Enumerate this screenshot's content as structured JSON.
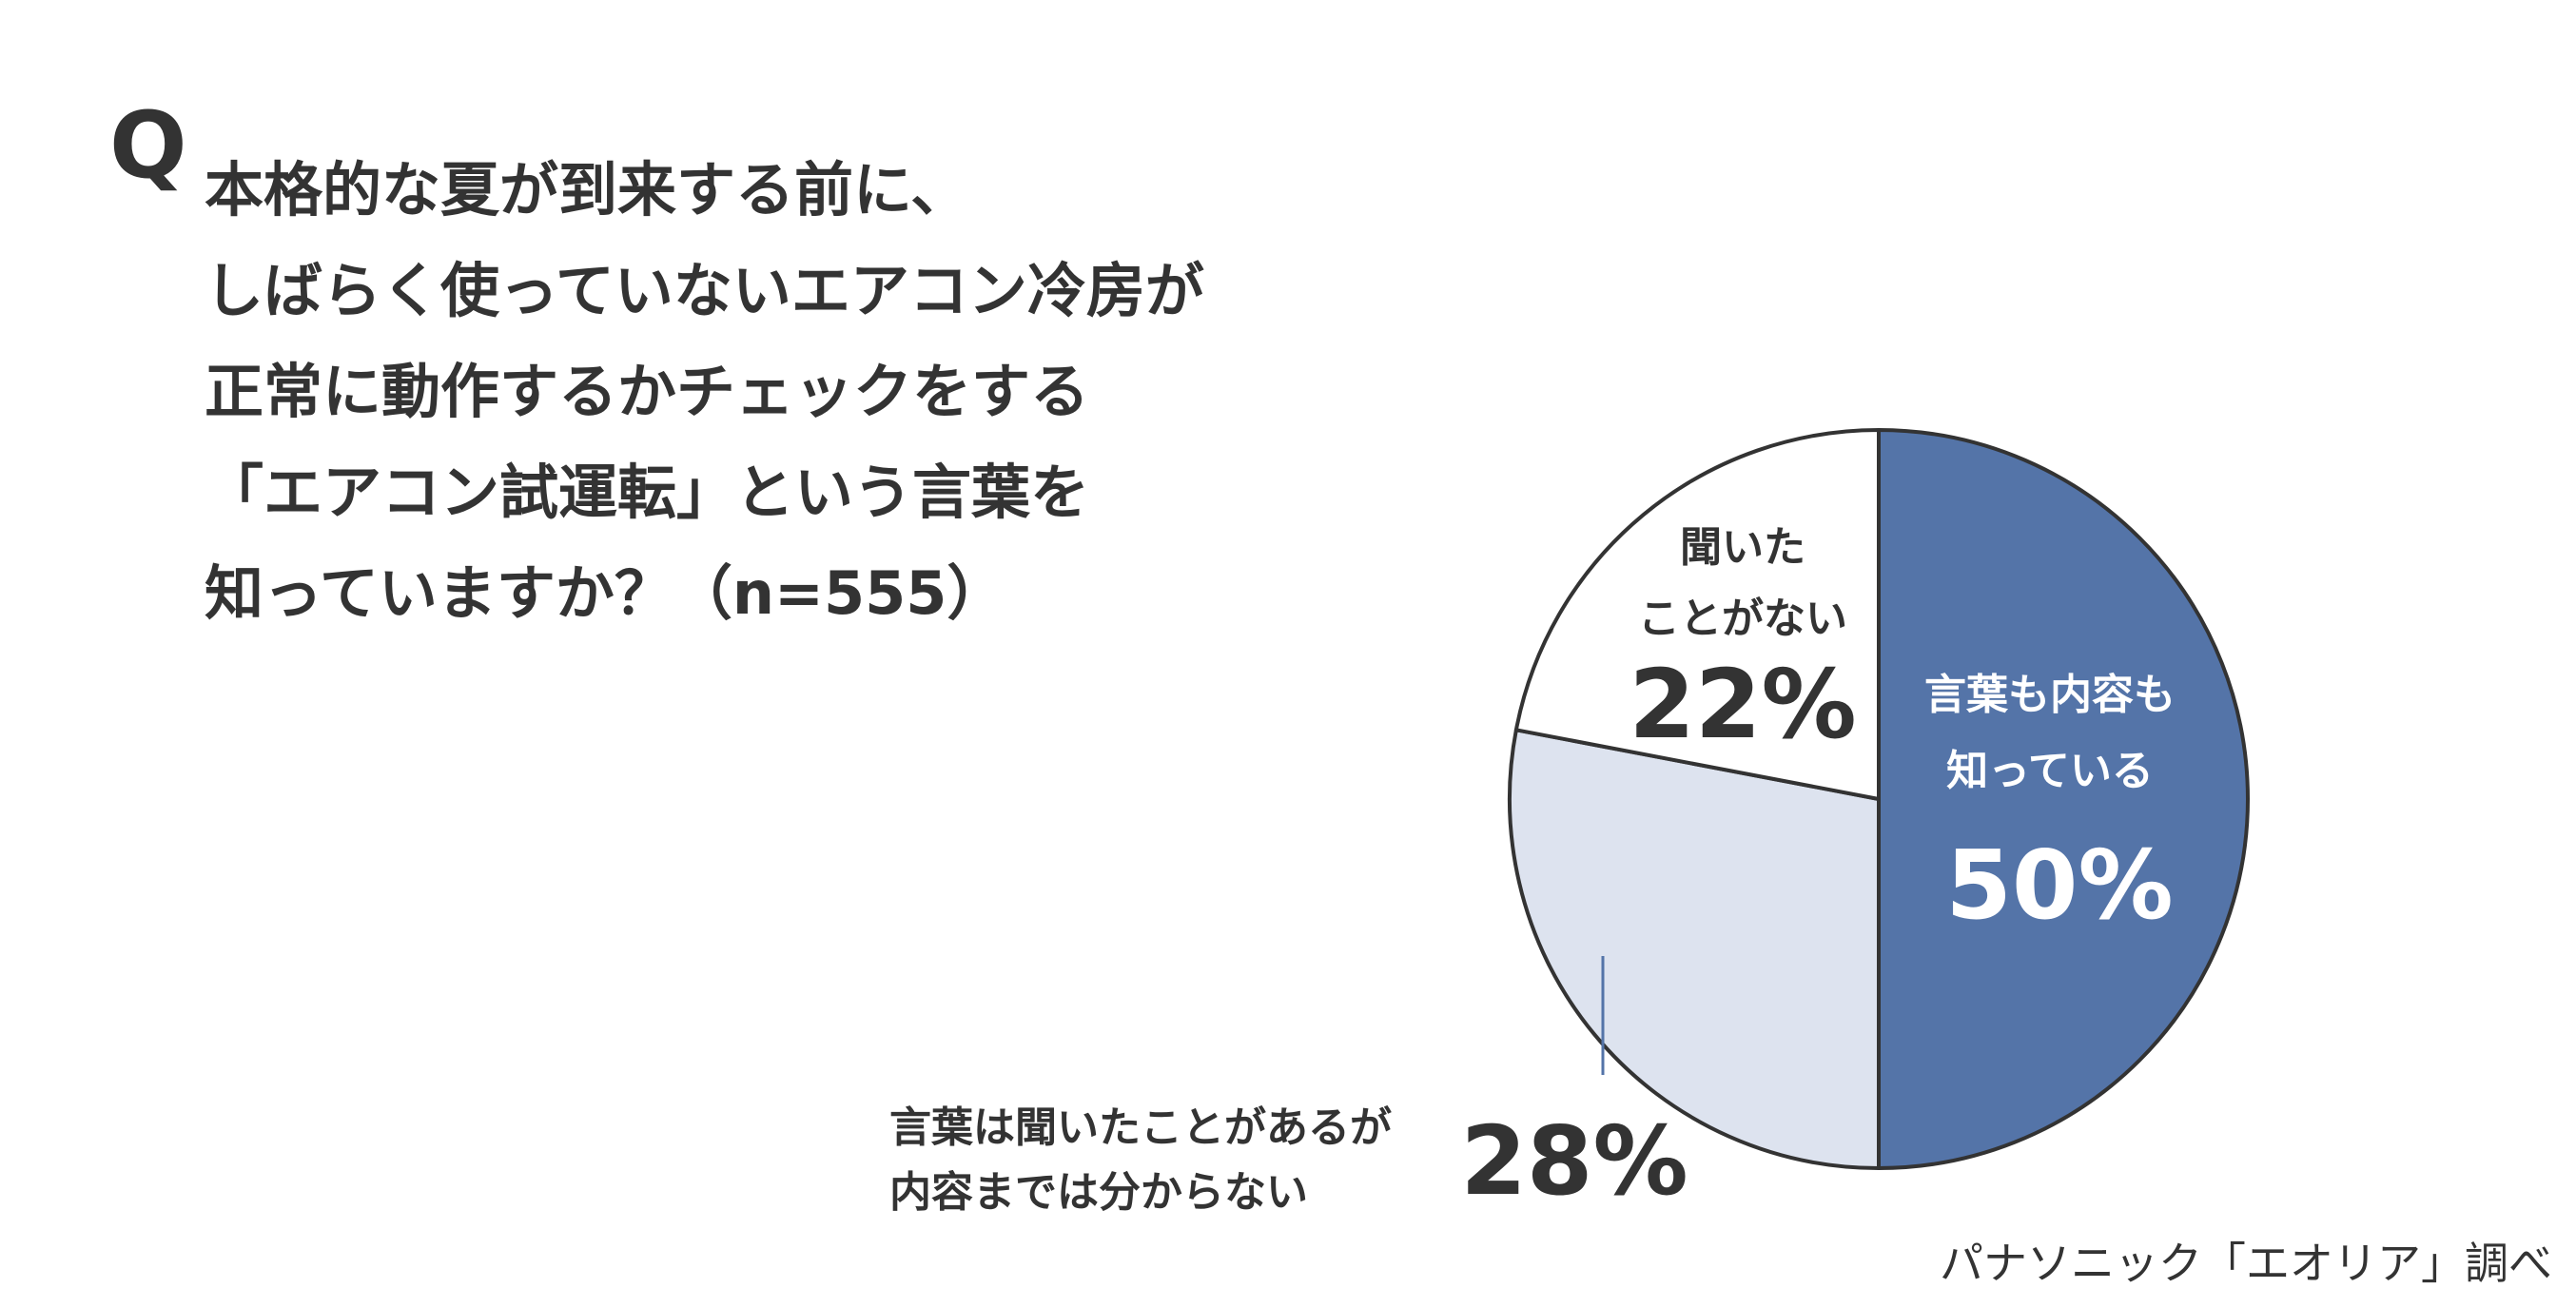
{
  "question": {
    "marker": "Q",
    "lines": [
      "本格的な夏が到来する前に、",
      "しばらく使っていないエアコン冷房が",
      "正常に動作するかチェックをする",
      "「エアコン試運転」という言葉を",
      "知っていますか？（n=555）"
    ]
  },
  "chart_data": {
    "type": "pie",
    "start": "12 o'clock",
    "direction": "clockwise",
    "slices": [
      {
        "label_lines": [
          "言葉も内容も",
          "知っている"
        ],
        "value": 50,
        "display": "50%",
        "color": "#5474a8",
        "label_color": "#ffffff"
      },
      {
        "label_lines": [
          "言葉は聞いたことがあるが",
          "内容までは分からない"
        ],
        "value": 28,
        "display": "28%",
        "color": "#dde3ef",
        "label_color": "#333333"
      },
      {
        "label_lines": [
          "聞いた",
          "ことがない"
        ],
        "value": 22,
        "display": "22%",
        "color": "#ffffff",
        "label_color": "#333333"
      }
    ],
    "outline_color": "#333333"
  },
  "source": "パナソニック「エオリア」調べ"
}
